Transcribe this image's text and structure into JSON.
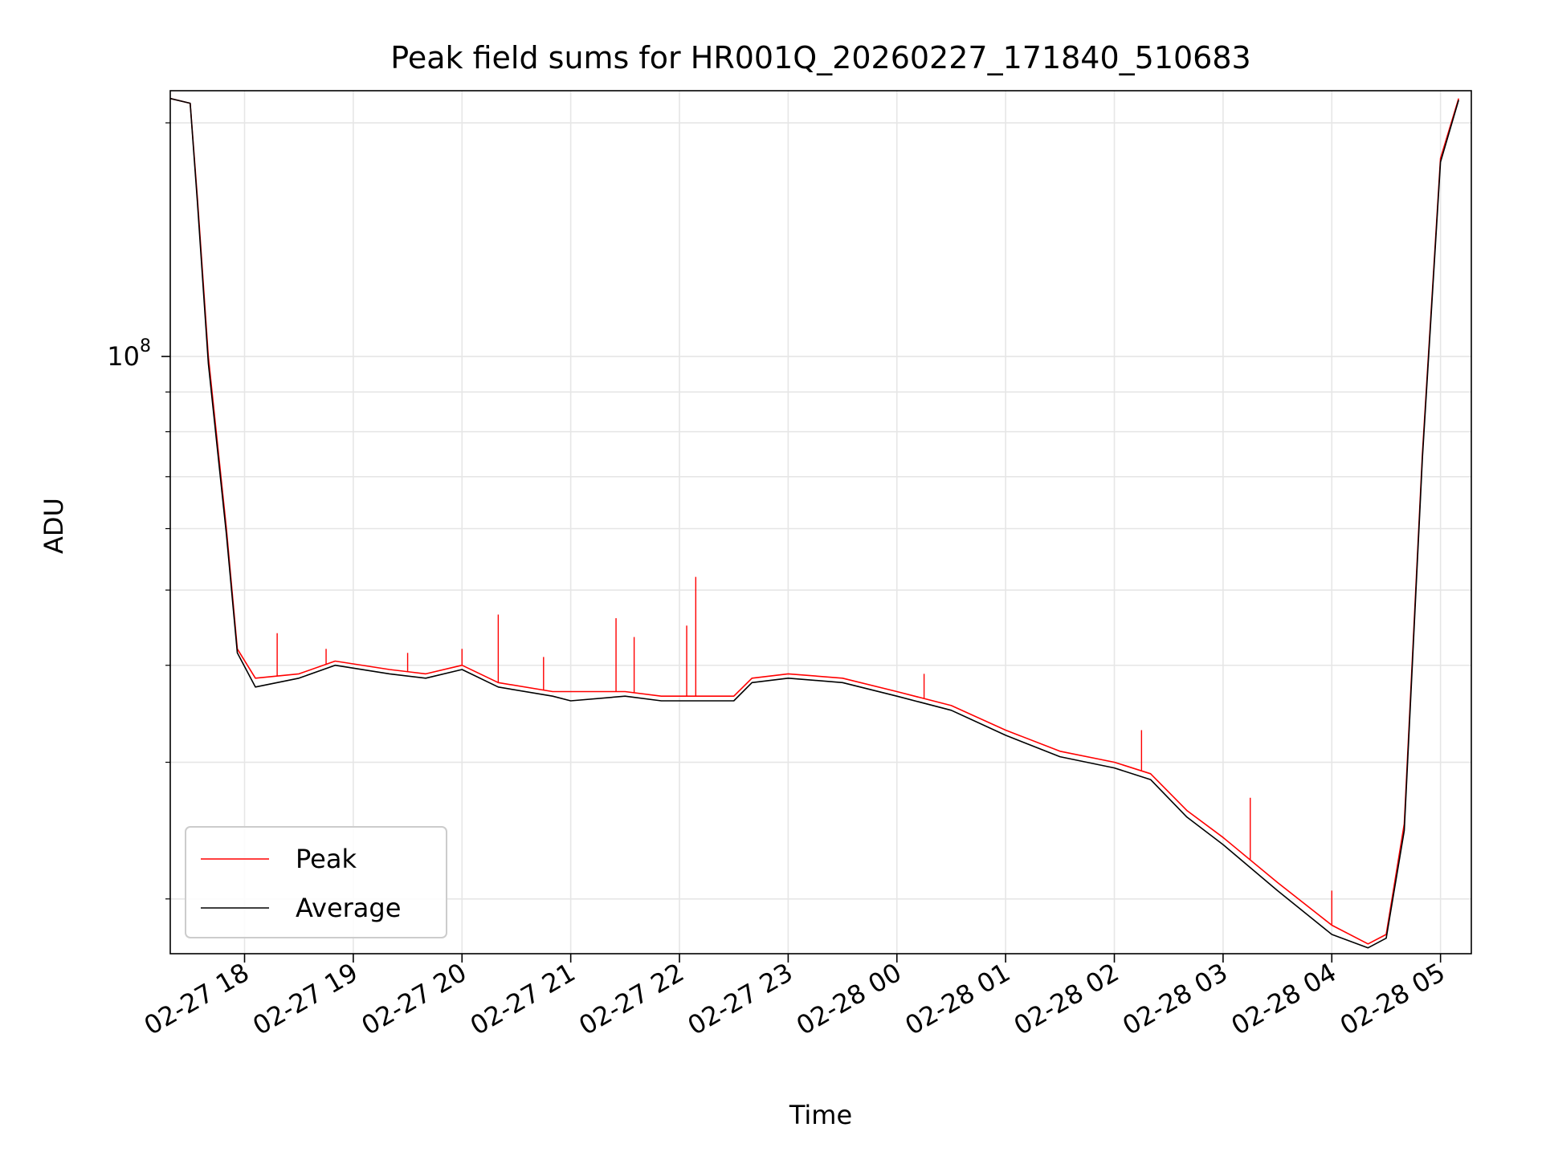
{
  "chart_data": {
    "type": "line",
    "title": "Peak field sums for HR001Q_20260227_171840_510683",
    "xlabel": "Time",
    "ylabel": "ADU",
    "yscale": "log",
    "xlim": [
      "2026-02-27 17:19",
      "2026-02-28 05:17"
    ],
    "ylim": [
      17000000,
      220000000
    ],
    "grid": true,
    "legend_position": "lower-left",
    "x_ticks": [
      "2026-02-27 18:00",
      "2026-02-27 19:00",
      "2026-02-27 20:00",
      "2026-02-27 21:00",
      "2026-02-27 22:00",
      "2026-02-27 23:00",
      "2026-02-28 00:00",
      "2026-02-28 01:00",
      "2026-02-28 02:00",
      "2026-02-28 03:00",
      "2026-02-28 04:00",
      "2026-02-28 05:00"
    ],
    "x_tick_labels": [
      "02-27 18",
      "02-27 19",
      "02-27 20",
      "02-27 21",
      "02-27 22",
      "02-27 23",
      "02-28 00",
      "02-28 01",
      "02-28 02",
      "02-28 03",
      "02-28 04",
      "02-28 05"
    ],
    "y_major_tick": {
      "value": 100000000,
      "label": "10",
      "exponent": "8"
    },
    "y_minor_ticks": [
      20000000,
      30000000,
      40000000,
      50000000,
      60000000,
      70000000,
      80000000,
      90000000,
      200000000
    ],
    "colors": {
      "peak": "#ff0000",
      "average": "#000000"
    },
    "series": [
      {
        "name": "Peak",
        "color": "#ff0000",
        "x": [
          "2026-02-27 17:19",
          "2026-02-27 17:30",
          "2026-02-27 17:34",
          "2026-02-27 17:40",
          "2026-02-27 17:50",
          "2026-02-27 17:56",
          "2026-02-27 18:06",
          "2026-02-27 18:30",
          "2026-02-27 18:50",
          "2026-02-27 19:20",
          "2026-02-27 19:40",
          "2026-02-27 20:00",
          "2026-02-27 20:20",
          "2026-02-27 20:50",
          "2026-02-27 21:00",
          "2026-02-27 21:30",
          "2026-02-27 21:50",
          "2026-02-27 22:30",
          "2026-02-27 22:40",
          "2026-02-27 23:00",
          "2026-02-27 23:30",
          "2026-02-28 00:00",
          "2026-02-28 00:30",
          "2026-02-28 01:00",
          "2026-02-28 01:30",
          "2026-02-28 02:00",
          "2026-02-28 02:20",
          "2026-02-28 02:40",
          "2026-02-28 03:00",
          "2026-02-28 03:30",
          "2026-02-28 04:00",
          "2026-02-28 04:20",
          "2026-02-28 04:30",
          "2026-02-28 04:40",
          "2026-02-28 04:50",
          "2026-02-28 05:00",
          "2026-02-28 05:10"
        ],
        "values": [
          215000000,
          212000000,
          160000000,
          100000000,
          60000000,
          42000000,
          38500000,
          39000000,
          40500000,
          39500000,
          39000000,
          40000000,
          38000000,
          37000000,
          37000000,
          37000000,
          36500000,
          36500000,
          38500000,
          39000000,
          38500000,
          37000000,
          35500000,
          33000000,
          31000000,
          30000000,
          29000000,
          26000000,
          24000000,
          21000000,
          18500000,
          17500000,
          18000000,
          25000000,
          75000000,
          180000000,
          215000000
        ],
        "spikes": [
          {
            "x": "2026-02-27 18:18",
            "value": 44000000
          },
          {
            "x": "2026-02-27 18:45",
            "value": 42000000
          },
          {
            "x": "2026-02-27 19:30",
            "value": 41500000
          },
          {
            "x": "2026-02-27 20:00",
            "value": 42000000
          },
          {
            "x": "2026-02-27 20:20",
            "value": 46500000
          },
          {
            "x": "2026-02-27 20:45",
            "value": 41000000
          },
          {
            "x": "2026-02-27 21:25",
            "value": 46000000
          },
          {
            "x": "2026-02-27 21:35",
            "value": 43500000
          },
          {
            "x": "2026-02-27 22:04",
            "value": 45000000
          },
          {
            "x": "2026-02-27 22:09",
            "value": 52000000
          },
          {
            "x": "2026-02-28 00:15",
            "value": 39000000
          },
          {
            "x": "2026-02-28 02:15",
            "value": 33000000
          },
          {
            "x": "2026-02-28 03:15",
            "value": 27000000
          },
          {
            "x": "2026-02-28 04:00",
            "value": 20500000
          }
        ]
      },
      {
        "name": "Average",
        "color": "#000000",
        "x": [
          "2026-02-27 17:19",
          "2026-02-27 17:30",
          "2026-02-27 17:34",
          "2026-02-27 17:40",
          "2026-02-27 17:50",
          "2026-02-27 17:56",
          "2026-02-27 18:06",
          "2026-02-27 18:30",
          "2026-02-27 18:50",
          "2026-02-27 19:20",
          "2026-02-27 19:40",
          "2026-02-27 20:00",
          "2026-02-27 20:20",
          "2026-02-27 20:50",
          "2026-02-27 21:00",
          "2026-02-27 21:30",
          "2026-02-27 21:50",
          "2026-02-27 22:30",
          "2026-02-27 22:40",
          "2026-02-27 23:00",
          "2026-02-27 23:30",
          "2026-02-28 00:00",
          "2026-02-28 00:30",
          "2026-02-28 01:00",
          "2026-02-28 01:30",
          "2026-02-28 02:00",
          "2026-02-28 02:20",
          "2026-02-28 02:40",
          "2026-02-28 03:00",
          "2026-02-28 03:30",
          "2026-02-28 04:00",
          "2026-02-28 04:20",
          "2026-02-28 04:30",
          "2026-02-28 04:40",
          "2026-02-28 04:50",
          "2026-02-28 05:00",
          "2026-02-28 05:10"
        ],
        "values": [
          215000000,
          212000000,
          158000000,
          98000000,
          59000000,
          41500000,
          37500000,
          38500000,
          40000000,
          39000000,
          38500000,
          39500000,
          37500000,
          36500000,
          36000000,
          36500000,
          36000000,
          36000000,
          38000000,
          38500000,
          38000000,
          36500000,
          35000000,
          32500000,
          30500000,
          29500000,
          28500000,
          25500000,
          23500000,
          20500000,
          18000000,
          17300000,
          17800000,
          24500000,
          74000000,
          178000000,
          214000000
        ]
      }
    ]
  }
}
